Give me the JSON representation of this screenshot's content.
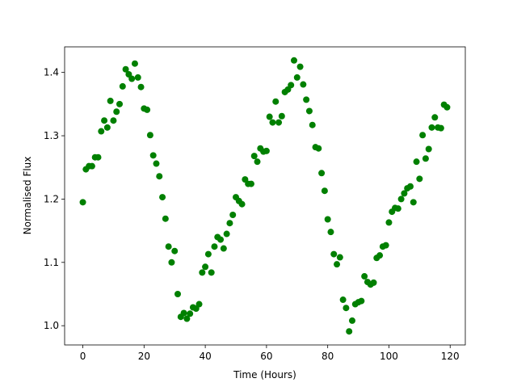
{
  "chart_data": {
    "type": "scatter",
    "xlabel": "Time (Hours)",
    "ylabel": "Normalised Flux",
    "color": "#008000",
    "x": [
      0,
      1,
      2,
      3,
      4,
      5,
      6,
      7,
      8,
      9,
      10,
      11,
      12,
      13,
      14,
      15,
      16,
      17,
      18,
      19,
      20,
      21,
      22,
      23,
      24,
      25,
      26,
      27,
      28,
      29,
      30,
      31,
      32,
      33,
      34,
      35,
      36,
      37,
      38,
      39,
      40,
      41,
      42,
      43,
      44,
      45,
      46,
      47,
      48,
      49,
      50,
      51,
      52,
      53,
      54,
      55,
      56,
      57,
      58,
      59,
      60,
      61,
      62,
      63,
      64,
      65,
      66,
      67,
      68,
      69,
      70,
      71,
      72,
      73,
      74,
      75,
      76,
      77,
      78,
      79,
      80,
      81,
      82,
      83,
      84,
      85,
      86,
      87,
      88,
      89,
      90,
      91,
      92,
      93,
      94,
      95,
      96,
      97,
      98,
      99,
      100,
      101,
      102,
      103,
      104,
      105,
      106,
      107,
      108,
      109,
      110,
      111,
      112,
      113,
      114,
      115,
      116,
      117,
      118,
      119
    ],
    "values": [
      1.195,
      1.247,
      1.252,
      1.252,
      1.266,
      1.266,
      1.307,
      1.324,
      1.313,
      1.355,
      1.324,
      1.338,
      1.35,
      1.378,
      1.405,
      1.397,
      1.39,
      1.414,
      1.392,
      1.377,
      1.343,
      1.341,
      1.301,
      1.269,
      1.256,
      1.236,
      1.203,
      1.169,
      1.125,
      1.1,
      1.118,
      1.05,
      1.014,
      1.02,
      1.011,
      1.019,
      1.029,
      1.027,
      1.034,
      1.084,
      1.093,
      1.113,
      1.084,
      1.125,
      1.14,
      1.136,
      1.122,
      1.145,
      1.162,
      1.175,
      1.203,
      1.197,
      1.192,
      1.231,
      1.224,
      1.224,
      1.268,
      1.259,
      1.28,
      1.275,
      1.276,
      1.33,
      1.321,
      1.354,
      1.321,
      1.331,
      1.369,
      1.373,
      1.38,
      1.419,
      1.392,
      1.409,
      1.381,
      1.357,
      1.339,
      1.317,
      1.282,
      1.28,
      1.241,
      1.213,
      1.168,
      1.148,
      1.113,
      1.097,
      1.108,
      1.041,
      1.028,
      0.991,
      1.008,
      1.034,
      1.037,
      1.039,
      1.078,
      1.069,
      1.065,
      1.068,
      1.107,
      1.111,
      1.125,
      1.127,
      1.163,
      1.18,
      1.186,
      1.185,
      1.2,
      1.209,
      1.217,
      1.22,
      1.195,
      1.259,
      1.232,
      1.301,
      1.264,
      1.279,
      1.313,
      1.329,
      1.313,
      1.312,
      1.349,
      1.345
    ],
    "xlim": [
      -5.95,
      124.95
    ],
    "xticks": [
      0,
      20,
      40,
      60,
      80,
      100,
      120
    ],
    "ylim": [
      0.9696,
      1.4404
    ],
    "yticks": [
      {
        "value": 1,
        "label": "1.0"
      },
      1.1,
      1.2,
      1.3,
      1.4
    ]
  }
}
